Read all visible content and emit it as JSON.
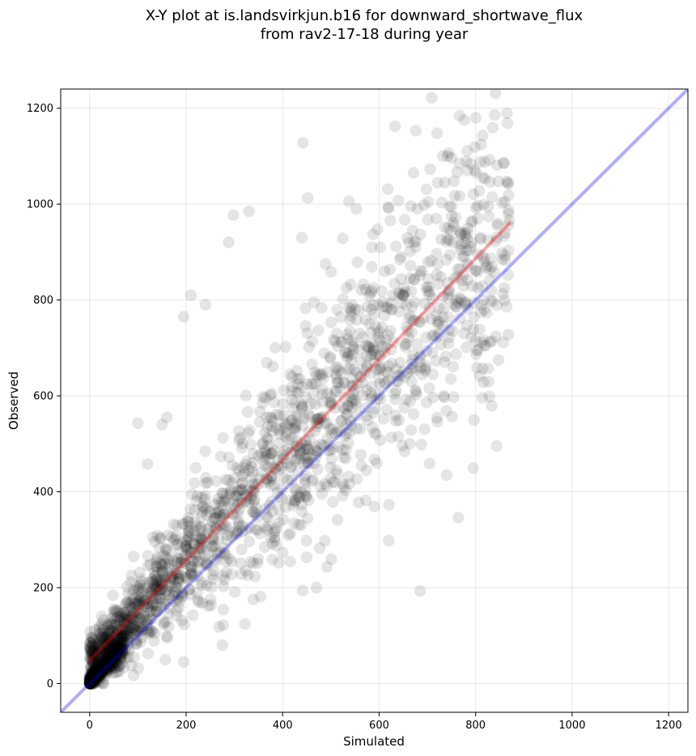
{
  "chart_data": {
    "type": "scatter",
    "title_line1": "X-Y plot at is.landsvirkjun.b16 for downward_shortwave_flux",
    "title_line2": "from rav2-17-18 during year",
    "xlabel": "Simulated",
    "ylabel": "Observed",
    "xlim": [
      -60,
      1240
    ],
    "ylim": [
      -60,
      1240
    ],
    "xticks": [
      0,
      200,
      400,
      600,
      800,
      1000,
      1200
    ],
    "yticks": [
      0,
      200,
      400,
      600,
      800,
      1000,
      1200
    ],
    "grid": true,
    "point_color": "#000000",
    "point_alpha": 0.1,
    "point_count": 2200,
    "fit_line": {
      "name": "regression",
      "color": "#ff0000",
      "alpha": 0.35,
      "x": [
        0,
        870
      ],
      "y": [
        48,
        960
      ]
    },
    "identity_line": {
      "name": "1:1",
      "color": "#0000ff",
      "alpha": 0.32,
      "x": [
        -60,
        1240
      ],
      "y": [
        -60,
        1240
      ]
    },
    "sample_points": [
      [
        800,
        1180
      ],
      [
        676,
        1153
      ],
      [
        720,
        1148
      ],
      [
        442,
        1128
      ],
      [
        742,
        1100
      ],
      [
        766,
        1085
      ],
      [
        860,
        1005
      ],
      [
        452,
        1013
      ],
      [
        640,
        1007
      ],
      [
        693,
        998
      ],
      [
        298,
        977
      ],
      [
        330,
        985
      ],
      [
        553,
        990
      ],
      [
        288,
        920
      ],
      [
        440,
        930
      ],
      [
        868,
        903
      ],
      [
        842,
        724
      ],
      [
        826,
        657
      ],
      [
        590,
        523
      ],
      [
        595,
        460
      ],
      [
        685,
        193
      ],
      [
        620,
        298
      ],
      [
        492,
        243
      ],
      [
        470,
        200
      ],
      [
        120,
        458
      ],
      [
        100,
        543
      ],
      [
        210,
        810
      ],
      [
        240,
        790
      ],
      [
        160,
        555
      ],
      [
        150,
        540
      ],
      [
        195,
        765
      ],
      [
        275,
        80
      ],
      [
        195,
        45
      ],
      [
        135,
        105
      ],
      [
        580,
        700
      ],
      [
        760,
        800
      ]
    ]
  }
}
